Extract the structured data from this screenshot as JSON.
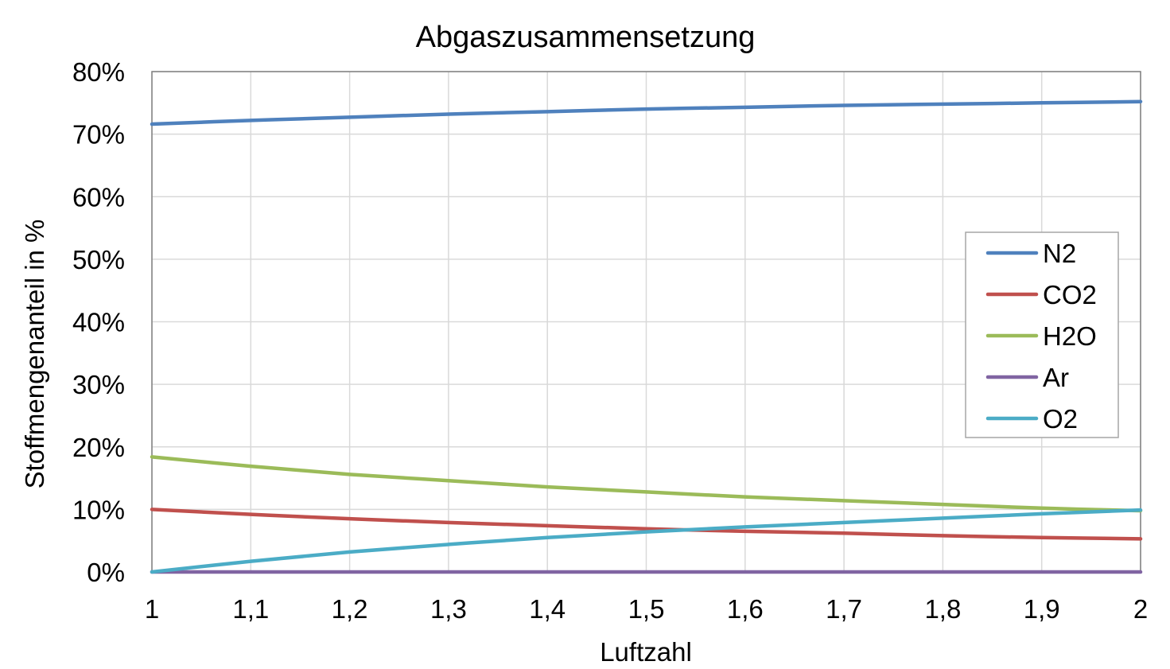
{
  "chart_data": {
    "type": "line",
    "title": "Abgaszusammensetzung",
    "xlabel": "Luftzahl",
    "ylabel": "Stoffmengenanteil in %",
    "xlim": [
      1,
      2
    ],
    "ylim": [
      0,
      0.8
    ],
    "x_ticks": [
      1,
      1.1,
      1.2,
      1.3,
      1.4,
      1.5,
      1.6,
      1.7,
      1.8,
      1.9,
      2
    ],
    "x_tick_labels": [
      "1",
      "1,1",
      "1,2",
      "1,3",
      "1,4",
      "1,5",
      "1,6",
      "1,7",
      "1,8",
      "1,9",
      "2"
    ],
    "y_ticks": [
      0,
      0.1,
      0.2,
      0.3,
      0.4,
      0.5,
      0.6,
      0.7,
      0.8
    ],
    "y_tick_labels": [
      "0%",
      "10%",
      "20%",
      "30%",
      "40%",
      "50%",
      "60%",
      "70%",
      "80%"
    ],
    "grid": true,
    "legend_position": "right",
    "x": [
      1,
      1.1,
      1.2,
      1.3,
      1.4,
      1.5,
      1.6,
      1.7,
      1.8,
      1.9,
      2
    ],
    "series": [
      {
        "name": "N2",
        "color": "#4f81bd",
        "values": [
          0.716,
          0.722,
          0.727,
          0.732,
          0.736,
          0.74,
          0.743,
          0.746,
          0.748,
          0.75,
          0.752
        ]
      },
      {
        "name": "CO2",
        "color": "#c0504d",
        "values": [
          0.1,
          0.092,
          0.085,
          0.079,
          0.074,
          0.069,
          0.065,
          0.062,
          0.058,
          0.055,
          0.053
        ]
      },
      {
        "name": "H2O",
        "color": "#9bbb59",
        "values": [
          0.184,
          0.169,
          0.156,
          0.146,
          0.136,
          0.128,
          0.12,
          0.114,
          0.108,
          0.102,
          0.098
        ]
      },
      {
        "name": "Ar",
        "color": "#8064a2",
        "values": [
          0.0,
          0.0,
          0.0,
          0.0,
          0.0,
          0.0,
          0.0,
          0.0,
          0.0,
          0.0,
          0.0
        ]
      },
      {
        "name": "O2",
        "color": "#4bacc6",
        "values": [
          0.0,
          0.017,
          0.032,
          0.044,
          0.055,
          0.064,
          0.072,
          0.079,
          0.086,
          0.093,
          0.099
        ]
      }
    ]
  }
}
